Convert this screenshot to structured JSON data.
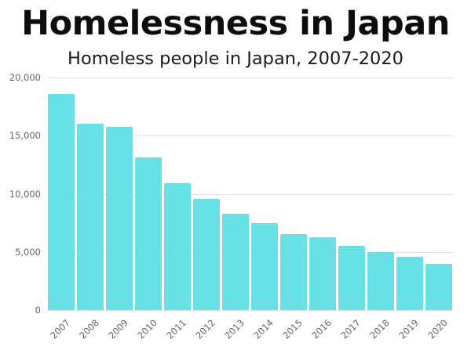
{
  "header": {
    "title": "Homelessness in Japan",
    "subtitle": "Homeless people in Japan, 2007-2020"
  },
  "colors": {
    "bar": "#67e0e6",
    "grid": "#e2e2e2",
    "axis_text": "#666666",
    "title": "#0d0d0d"
  },
  "axis": {
    "y_ticks": [
      "0",
      "5,000",
      "10,000",
      "15,000",
      "20,000"
    ],
    "x_ticks": [
      "2007",
      "2008",
      "2009",
      "2010",
      "2011",
      "2012",
      "2013",
      "2014",
      "2015",
      "2016",
      "2017",
      "2018",
      "2019",
      "2020"
    ]
  },
  "chart_data": {
    "type": "bar",
    "title": "Homelessness in Japan",
    "subtitle": "Homeless people in Japan, 2007-2020",
    "xlabel": "",
    "ylabel": "",
    "categories": [
      "2007",
      "2008",
      "2009",
      "2010",
      "2011",
      "2012",
      "2013",
      "2014",
      "2015",
      "2016",
      "2017",
      "2018",
      "2019",
      "2020"
    ],
    "values": [
      18564,
      16018,
      15759,
      13124,
      10890,
      9576,
      8265,
      7508,
      6541,
      6235,
      5534,
      4977,
      4555,
      3992
    ],
    "ylim": [
      0,
      20000
    ],
    "yticks": [
      0,
      5000,
      10000,
      15000,
      20000
    ],
    "grid": true,
    "legend": null,
    "x_tick_rotation": -45
  }
}
